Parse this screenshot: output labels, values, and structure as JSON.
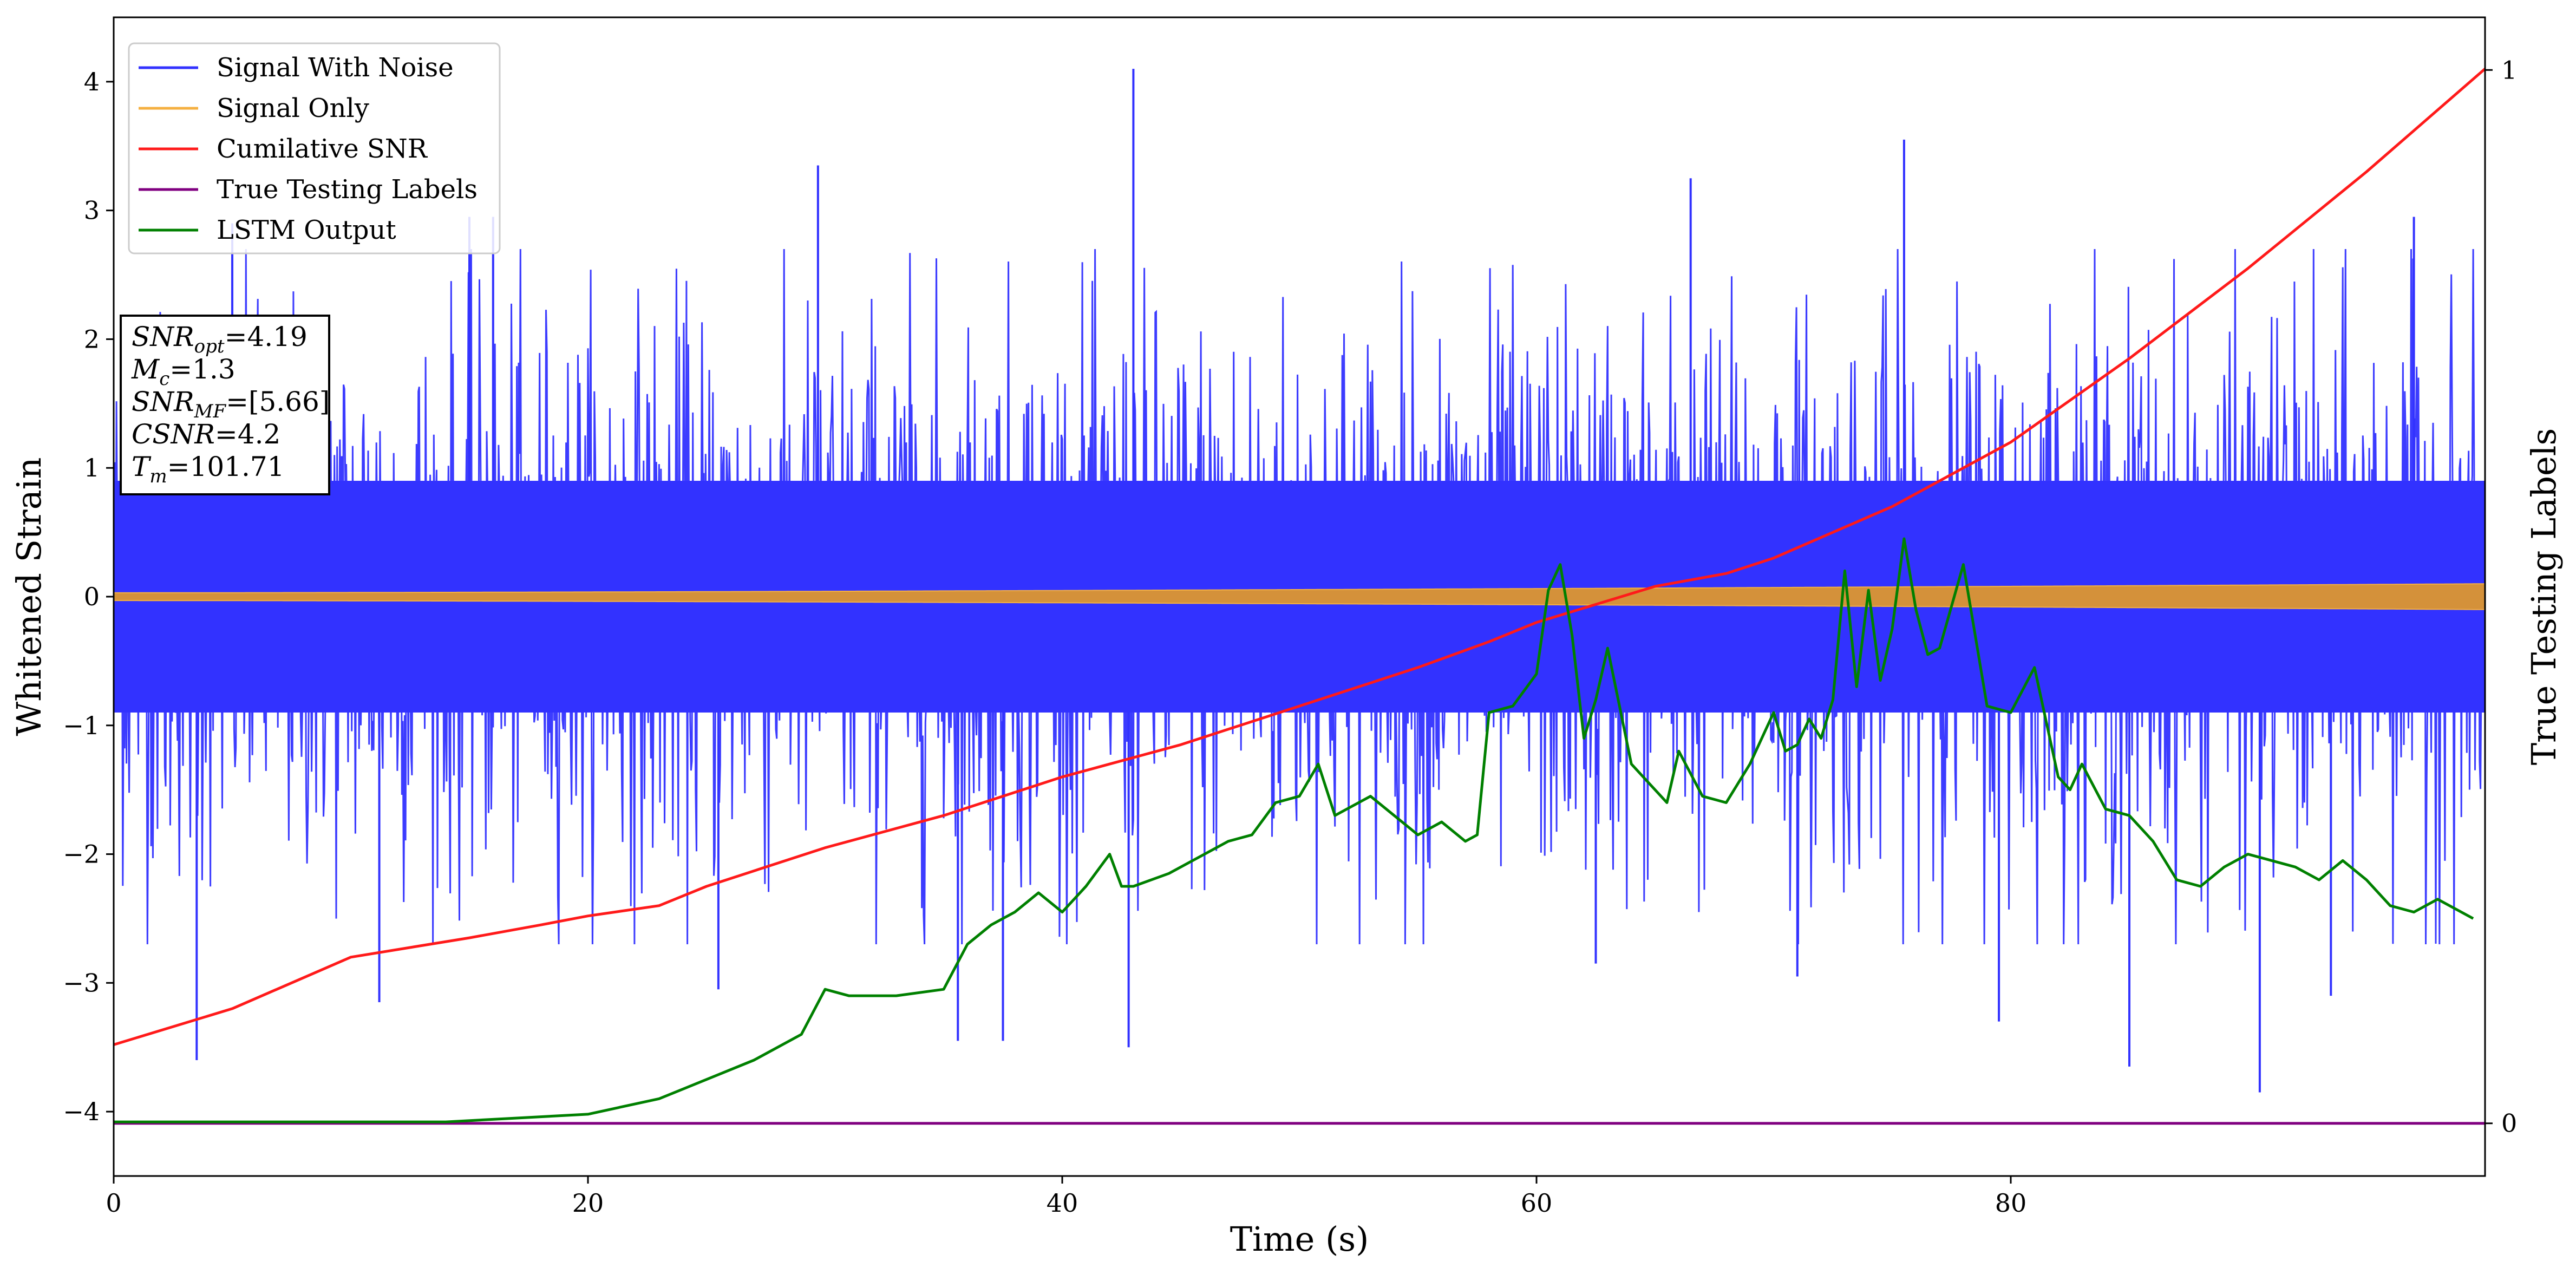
{
  "chart_data": {
    "type": "line",
    "xlabel": "Time (s)",
    "ylabel_left": "Whitened Strain",
    "ylabel_right": "True Testing Labels",
    "xlim": [
      0,
      100
    ],
    "ylim_left": [
      -4.5,
      4.5
    ],
    "ylim_right": [
      -0.05,
      1.05
    ],
    "x_ticks": [
      0,
      20,
      40,
      60,
      80
    ],
    "x_tick_labels": [
      "0",
      "20",
      "40",
      "60",
      "80"
    ],
    "y_ticks_left": [
      -4,
      -3,
      -2,
      -1,
      0,
      1,
      2,
      3,
      4
    ],
    "y_tick_labels_left": [
      "−4",
      "−3",
      "−2",
      "−1",
      "0",
      "1",
      "2",
      "3",
      "4"
    ],
    "y_ticks_right": [
      0,
      1
    ],
    "y_tick_labels_right": [
      "0",
      "1"
    ],
    "legend_position": "top-left",
    "grid": false,
    "series": [
      {
        "name": "Signal With Noise",
        "color": "#3232ff",
        "axis": "left",
        "style": "dense noise",
        "typical_range": [
          -2.4,
          2.4
        ],
        "spikes": [
          {
            "x": 43.0,
            "y": 4.1
          },
          {
            "x": 42.8,
            "y": -3.5
          },
          {
            "x": 29.7,
            "y": 3.35
          },
          {
            "x": 3.5,
            "y": -3.6
          },
          {
            "x": 75.5,
            "y": 3.55
          },
          {
            "x": 85.0,
            "y": -3.65
          },
          {
            "x": 90.5,
            "y": -3.85
          },
          {
            "x": 35.6,
            "y": -3.45
          },
          {
            "x": 37.5,
            "y": -3.45
          },
          {
            "x": 11.2,
            "y": -3.15
          },
          {
            "x": 15.0,
            "y": 2.95
          },
          {
            "x": 16.0,
            "y": 2.95
          },
          {
            "x": 66.5,
            "y": 3.25
          },
          {
            "x": 97.0,
            "y": 2.95
          },
          {
            "x": 79.5,
            "y": -3.3
          },
          {
            "x": 62.5,
            "y": -2.85
          },
          {
            "x": 71.0,
            "y": -2.95
          },
          {
            "x": 25.5,
            "y": -3.05
          },
          {
            "x": 93.5,
            "y": -3.1
          },
          {
            "x": 5.0,
            "y": 2.9
          }
        ]
      },
      {
        "name": "Signal Only",
        "color": "#f5b041",
        "axis": "left",
        "style": "chirp",
        "amplitude_start": 0.03,
        "amplitude_end": 0.1
      },
      {
        "name": "Cumilative SNR",
        "color": "#ff1a1a",
        "axis": "left",
        "x": [
          0,
          5,
          10,
          15,
          18,
          20,
          23,
          25,
          30,
          35,
          40,
          45,
          50,
          55,
          58,
          60,
          65,
          68,
          70,
          75,
          80,
          85,
          90,
          95,
          100
        ],
        "y": [
          -3.48,
          -3.2,
          -2.8,
          -2.65,
          -2.55,
          -2.48,
          -2.4,
          -2.25,
          -1.95,
          -1.7,
          -1.4,
          -1.15,
          -0.85,
          -0.55,
          -0.35,
          -0.2,
          0.08,
          0.18,
          0.3,
          0.7,
          1.2,
          1.85,
          2.55,
          3.3,
          4.1
        ]
      },
      {
        "name": "True Testing Labels",
        "color": "#800080",
        "axis": "right",
        "x": [
          0,
          100
        ],
        "y": [
          0,
          0
        ]
      },
      {
        "name": "LSTM Output",
        "color": "#008000",
        "axis": "left",
        "x": [
          0,
          14,
          17,
          20,
          23,
          25,
          27,
          29,
          30,
          31,
          33,
          35,
          36,
          37,
          38,
          39,
          40,
          41,
          42,
          42.5,
          43,
          44.5,
          46,
          47,
          48,
          49,
          50,
          50.8,
          51.5,
          53,
          55,
          56,
          57,
          57.5,
          58,
          59,
          60,
          60.5,
          61,
          61.5,
          62,
          62.5,
          63,
          64,
          65,
          65.5,
          66,
          67,
          68,
          69,
          70,
          70.5,
          71,
          71.5,
          72,
          72.5,
          73,
          73.5,
          74,
          74.5,
          75,
          75.5,
          76,
          76.5,
          77,
          78,
          79,
          80,
          81,
          82,
          82.5,
          83,
          84,
          85,
          86,
          87,
          88,
          89,
          90,
          91,
          92,
          93,
          94,
          95,
          96,
          97,
          98,
          99.5
        ],
        "y": [
          -4.08,
          -4.08,
          -4.05,
          -4.02,
          -3.9,
          -3.75,
          -3.6,
          -3.4,
          -3.05,
          -3.1,
          -3.1,
          -3.05,
          -2.7,
          -2.55,
          -2.45,
          -2.3,
          -2.45,
          -2.25,
          -2.0,
          -2.25,
          -2.25,
          -2.15,
          -2.0,
          -1.9,
          -1.85,
          -1.6,
          -1.55,
          -1.3,
          -1.7,
          -1.55,
          -1.85,
          -1.75,
          -1.9,
          -1.85,
          -0.9,
          -0.85,
          -0.6,
          0.05,
          0.25,
          -0.3,
          -1.1,
          -0.8,
          -0.4,
          -1.3,
          -1.5,
          -1.6,
          -1.2,
          -1.55,
          -1.6,
          -1.3,
          -0.9,
          -1.2,
          -1.15,
          -0.95,
          -1.1,
          -0.8,
          0.2,
          -0.7,
          0.05,
          -0.65,
          -0.25,
          0.45,
          -0.1,
          -0.45,
          -0.4,
          0.25,
          -0.85,
          -0.9,
          -0.55,
          -1.4,
          -1.5,
          -1.3,
          -1.65,
          -1.7,
          -1.9,
          -2.2,
          -2.25,
          -2.1,
          -2.0,
          -2.05,
          -2.1,
          -2.2,
          -2.05,
          -2.2,
          -2.4,
          -2.45,
          -2.35,
          -2.5
        ]
      }
    ],
    "annotation": {
      "lines": [
        {
          "label": "SNR",
          "sub": "opt",
          "value": "=4.19"
        },
        {
          "label": "M",
          "sub": "c",
          "value": "=1.3"
        },
        {
          "label": "SNR",
          "sub": "MF",
          "value": "=[5.66]"
        },
        {
          "label": "CSNR",
          "sub": "",
          "value": "=4.2"
        },
        {
          "label": "T",
          "sub": "m",
          "value": "=101.71"
        }
      ]
    }
  }
}
